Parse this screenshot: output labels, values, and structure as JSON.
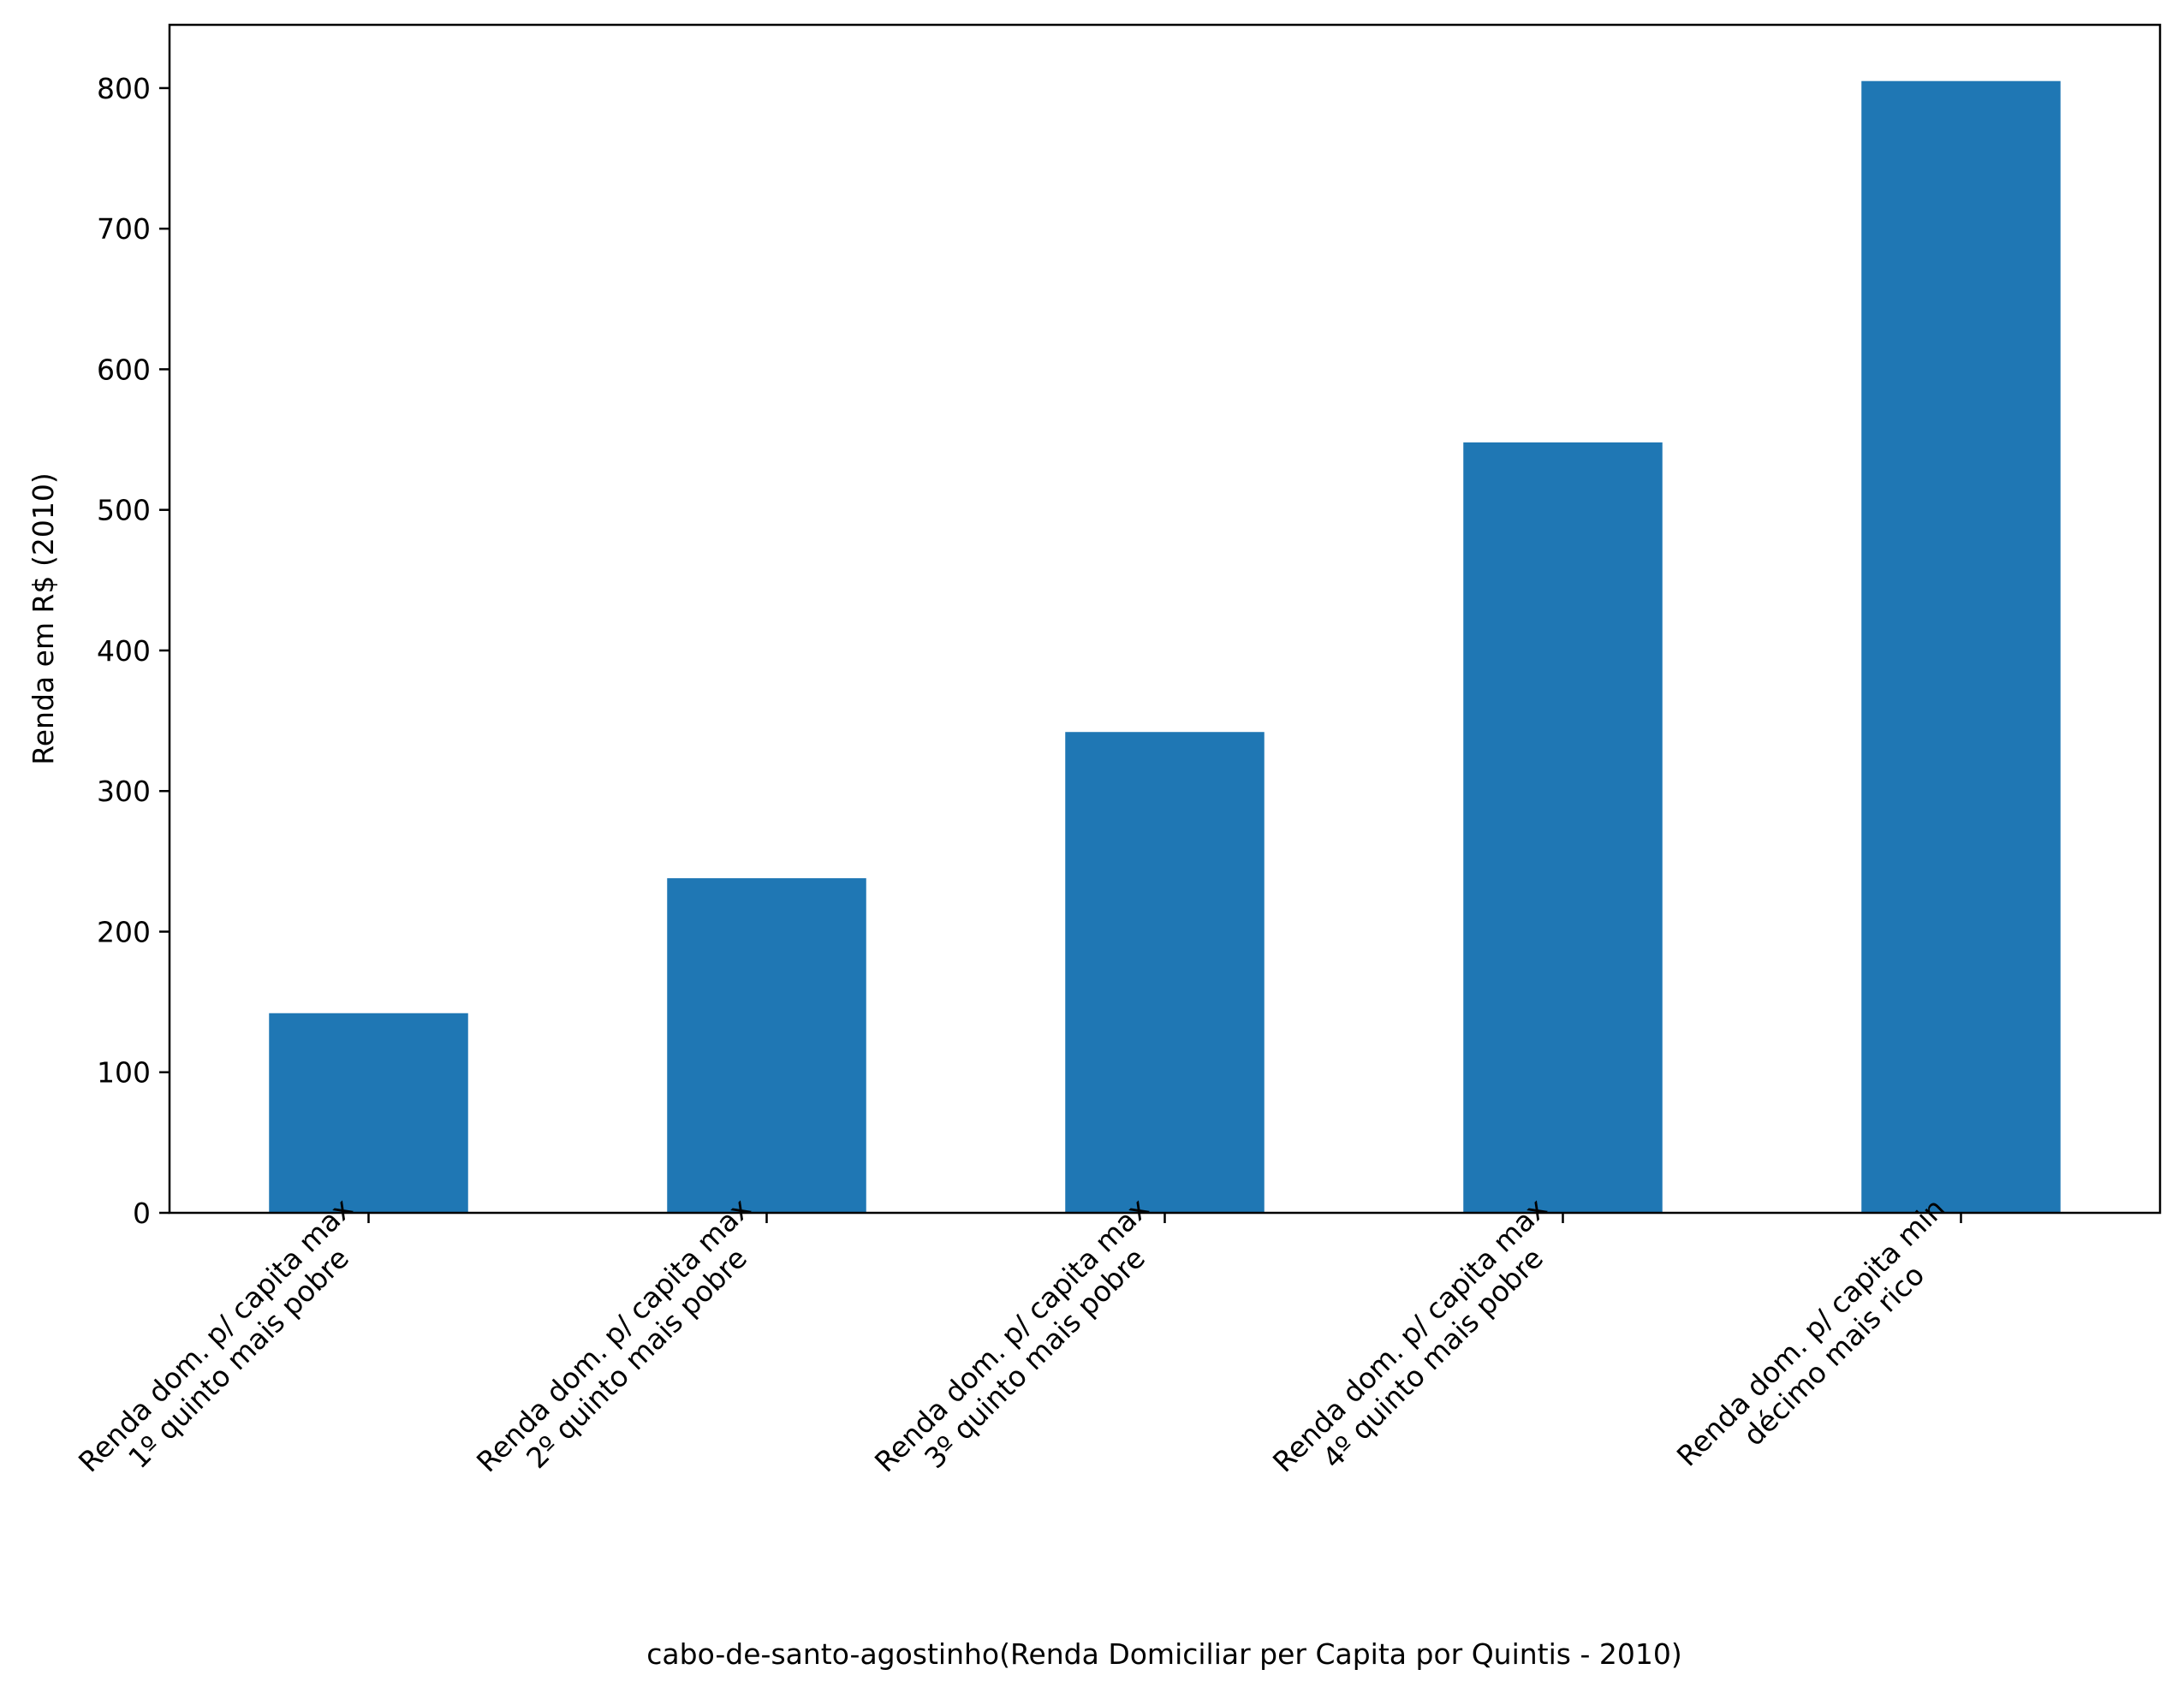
{
  "chart_data": {
    "type": "bar",
    "categories": [
      "Renda dom. p/ capita max\n1º quinto mais pobre",
      "Renda dom. p/ capita max\n2º quinto mais pobre",
      "Renda dom. p/ capita max\n3º quinto mais pobre",
      "Renda dom. p/ capita max\n4º quinto mais pobre",
      "Renda dom. p/ capita min\ndécimo mais rico"
    ],
    "values": [
      142,
      238,
      342,
      548,
      805
    ],
    "title": "",
    "xlabel": "cabo-de-santo-agostinho(Renda Domiciliar per Capita por Quintis - 2010)",
    "ylabel": "Renda em R$ (2010)",
    "ylim": [
      0,
      845
    ],
    "yticks": [
      0,
      100,
      200,
      300,
      400,
      500,
      600,
      700,
      800
    ],
    "grid": false,
    "legend": "none",
    "colors": {
      "bar": "#1f77b4",
      "axis": "#000000",
      "background": "#ffffff"
    }
  }
}
